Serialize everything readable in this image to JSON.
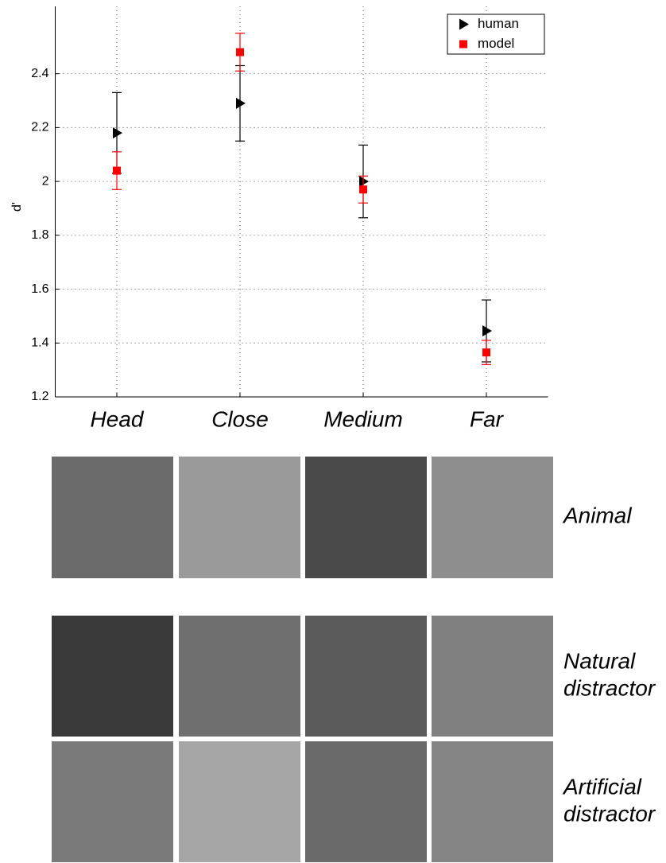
{
  "chart_data": {
    "type": "errorbar",
    "ylabel": "d'",
    "categories": [
      "Head",
      "Close",
      "Medium",
      "Far"
    ],
    "series": [
      {
        "name": "human",
        "color": "#000000",
        "marker": "triangle",
        "values": [
          2.18,
          2.29,
          2.0,
          1.445
        ],
        "errors": [
          0.15,
          0.14,
          0.135,
          0.115
        ]
      },
      {
        "name": "model",
        "color": "#ff0000",
        "marker": "square",
        "values": [
          2.04,
          2.48,
          1.97,
          1.365
        ],
        "errors": [
          0.07,
          0.07,
          0.05,
          0.045
        ]
      }
    ],
    "xlim": [
      0.5,
      4.5
    ],
    "ylim": [
      1.2,
      2.65
    ],
    "yticks": [
      1.2,
      1.4,
      1.6,
      1.8,
      2,
      2.2,
      2.4
    ],
    "grid": true,
    "legend": "upper right"
  },
  "image_rows": [
    {
      "label": [
        "Animal"
      ]
    },
    {
      "label": [
        "Natural",
        "distractor"
      ]
    },
    {
      "label": [
        "Artificial",
        "distractor"
      ]
    }
  ]
}
